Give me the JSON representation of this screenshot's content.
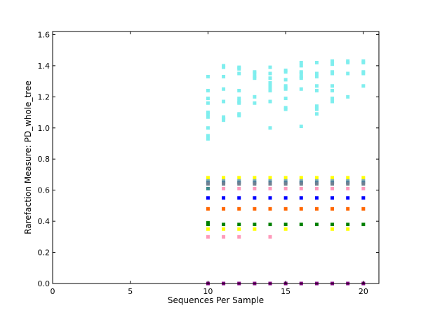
{
  "chart_data": {
    "type": "scatter",
    "title": "",
    "xlabel": "Sequences Per Sample",
    "ylabel": "Rarefaction Measure: PD_whole_tree",
    "xlim": [
      0,
      21
    ],
    "ylim": [
      0,
      1.62
    ],
    "x_ticks": [
      0,
      5,
      10,
      15,
      20
    ],
    "y_ticks": [
      0.0,
      0.2,
      0.4,
      0.6,
      0.8,
      1.0,
      1.2,
      1.4,
      1.6
    ],
    "x_tick_labels": [
      "0",
      "5",
      "10",
      "15",
      "20"
    ],
    "y_tick_labels": [
      "0.0",
      "0.2",
      "0.4",
      "0.6",
      "0.8",
      "1.0",
      "1.2",
      "1.4",
      "1.6"
    ],
    "grid": false,
    "legend": "none",
    "series": [
      {
        "color": "#7feeee",
        "points": [
          [
            10,
            1.33
          ],
          [
            10,
            1.24
          ],
          [
            10,
            1.19
          ],
          [
            10,
            1.16
          ],
          [
            10,
            1.1
          ],
          [
            10,
            1.09
          ],
          [
            10,
            1.07
          ],
          [
            10,
            1.0
          ],
          [
            10,
            0.95
          ],
          [
            10,
            0.93
          ],
          [
            11,
            1.4
          ],
          [
            11,
            1.39
          ],
          [
            11,
            1.33
          ],
          [
            11,
            1.25
          ],
          [
            11,
            1.17
          ],
          [
            11,
            1.07
          ],
          [
            11,
            1.06
          ],
          [
            11,
            1.05
          ],
          [
            12,
            1.39
          ],
          [
            12,
            1.38
          ],
          [
            12,
            1.35
          ],
          [
            12,
            1.24
          ],
          [
            12,
            1.19
          ],
          [
            12,
            1.17
          ],
          [
            12,
            1.16
          ],
          [
            12,
            1.09
          ],
          [
            12,
            1.08
          ],
          [
            13,
            1.36
          ],
          [
            13,
            1.35
          ],
          [
            13,
            1.33
          ],
          [
            13,
            1.32
          ],
          [
            13,
            1.2
          ],
          [
            13,
            1.16
          ],
          [
            14,
            1.39
          ],
          [
            14,
            1.35
          ],
          [
            14,
            1.32
          ],
          [
            14,
            1.29
          ],
          [
            14,
            1.27
          ],
          [
            14,
            1.26
          ],
          [
            14,
            1.24
          ],
          [
            14,
            1.17
          ],
          [
            14,
            1.0
          ],
          [
            15,
            1.37
          ],
          [
            15,
            1.36
          ],
          [
            15,
            1.31
          ],
          [
            15,
            1.27
          ],
          [
            15,
            1.26
          ],
          [
            15,
            1.25
          ],
          [
            15,
            1.19
          ],
          [
            15,
            1.13
          ],
          [
            15,
            1.12
          ],
          [
            16,
            1.42
          ],
          [
            16,
            1.4
          ],
          [
            16,
            1.36
          ],
          [
            16,
            1.35
          ],
          [
            16,
            1.33
          ],
          [
            16,
            1.32
          ],
          [
            16,
            1.25
          ],
          [
            16,
            1.01
          ],
          [
            17,
            1.42
          ],
          [
            17,
            1.35
          ],
          [
            17,
            1.33
          ],
          [
            17,
            1.27
          ],
          [
            17,
            1.24
          ],
          [
            17,
            1.14
          ],
          [
            17,
            1.13
          ],
          [
            17,
            1.12
          ],
          [
            17,
            1.09
          ],
          [
            18,
            1.43
          ],
          [
            18,
            1.41
          ],
          [
            18,
            1.36
          ],
          [
            18,
            1.35
          ],
          [
            18,
            1.27
          ],
          [
            18,
            1.24
          ],
          [
            18,
            1.19
          ],
          [
            18,
            1.17
          ],
          [
            19,
            1.43
          ],
          [
            19,
            1.42
          ],
          [
            19,
            1.35
          ],
          [
            19,
            1.2
          ],
          [
            20,
            1.43
          ],
          [
            20,
            1.42
          ],
          [
            20,
            1.36
          ],
          [
            20,
            1.35
          ],
          [
            20,
            1.27
          ]
        ]
      },
      {
        "color": "#ffff00",
        "points": [
          [
            10,
            0.68
          ],
          [
            11,
            0.68
          ],
          [
            12,
            0.68
          ],
          [
            13,
            0.68
          ],
          [
            14,
            0.68
          ],
          [
            15,
            0.68
          ],
          [
            16,
            0.68
          ],
          [
            17,
            0.68
          ],
          [
            18,
            0.68
          ],
          [
            19,
            0.68
          ],
          [
            20,
            0.68
          ]
        ]
      },
      {
        "color": "#8cb4b4",
        "points": [
          [
            10,
            0.66
          ],
          [
            11,
            0.66
          ],
          [
            12,
            0.66
          ],
          [
            13,
            0.66
          ],
          [
            14,
            0.66
          ],
          [
            15,
            0.66
          ],
          [
            16,
            0.66
          ],
          [
            17,
            0.66
          ],
          [
            18,
            0.66
          ],
          [
            19,
            0.66
          ],
          [
            20,
            0.66
          ]
        ]
      },
      {
        "color": "#4f7f9f",
        "points": [
          [
            10,
            0.65
          ],
          [
            11,
            0.65
          ],
          [
            12,
            0.65
          ],
          [
            13,
            0.65
          ],
          [
            14,
            0.65
          ],
          [
            15,
            0.65
          ],
          [
            16,
            0.65
          ],
          [
            17,
            0.65
          ],
          [
            18,
            0.65
          ],
          [
            19,
            0.65
          ],
          [
            20,
            0.65
          ]
        ]
      },
      {
        "color": "#708090",
        "points": [
          [
            10,
            0.64
          ],
          [
            11,
            0.64
          ],
          [
            12,
            0.64
          ],
          [
            13,
            0.64
          ],
          [
            14,
            0.64
          ],
          [
            15,
            0.64
          ],
          [
            16,
            0.64
          ],
          [
            17,
            0.64
          ],
          [
            18,
            0.64
          ],
          [
            19,
            0.64
          ],
          [
            20,
            0.64
          ]
        ]
      },
      {
        "color": "#ff99bb",
        "points": [
          [
            10,
            0.61
          ],
          [
            11,
            0.61
          ],
          [
            12,
            0.61
          ],
          [
            13,
            0.61
          ],
          [
            14,
            0.61
          ],
          [
            15,
            0.61
          ],
          [
            16,
            0.61
          ],
          [
            17,
            0.61
          ],
          [
            18,
            0.61
          ],
          [
            19,
            0.61
          ],
          [
            20,
            0.61
          ]
        ]
      },
      {
        "color": "#3c8c8c",
        "points": [
          [
            10,
            0.61
          ]
        ]
      },
      {
        "color": "#0000ff",
        "points": [
          [
            10,
            0.55
          ],
          [
            11,
            0.55
          ],
          [
            12,
            0.55
          ],
          [
            13,
            0.55
          ],
          [
            14,
            0.55
          ],
          [
            15,
            0.55
          ],
          [
            16,
            0.55
          ],
          [
            17,
            0.55
          ],
          [
            18,
            0.55
          ],
          [
            19,
            0.55
          ],
          [
            20,
            0.55
          ]
        ]
      },
      {
        "color": "#ff6600",
        "points": [
          [
            10,
            0.48
          ],
          [
            11,
            0.48
          ],
          [
            12,
            0.48
          ],
          [
            13,
            0.48
          ],
          [
            14,
            0.48
          ],
          [
            15,
            0.48
          ],
          [
            16,
            0.48
          ],
          [
            17,
            0.48
          ],
          [
            18,
            0.48
          ],
          [
            19,
            0.48
          ],
          [
            20,
            0.48
          ]
        ]
      },
      {
        "color": "#008000",
        "points": [
          [
            10,
            0.39
          ],
          [
            10,
            0.38
          ],
          [
            11,
            0.38
          ],
          [
            12,
            0.38
          ],
          [
            13,
            0.38
          ],
          [
            14,
            0.38
          ],
          [
            15,
            0.38
          ],
          [
            16,
            0.38
          ],
          [
            17,
            0.38
          ],
          [
            18,
            0.38
          ],
          [
            19,
            0.38
          ],
          [
            20,
            0.38
          ]
        ]
      },
      {
        "color": "#ffff00",
        "points": [
          [
            10,
            0.35
          ],
          [
            11,
            0.35
          ],
          [
            12,
            0.35
          ],
          [
            13,
            0.35
          ],
          [
            15,
            0.35
          ],
          [
            18,
            0.35
          ],
          [
            19,
            0.35
          ]
        ]
      },
      {
        "color": "#ff99bb",
        "points": [
          [
            10,
            0.3
          ],
          [
            11,
            0.3
          ],
          [
            12,
            0.3
          ],
          [
            14,
            0.3
          ]
        ]
      },
      {
        "color": "#800080",
        "points": [
          [
            10,
            0.0
          ],
          [
            11,
            0.0
          ],
          [
            12,
            0.0
          ],
          [
            13,
            0.0
          ],
          [
            14,
            0.0
          ],
          [
            15,
            0.0
          ],
          [
            16,
            0.0
          ],
          [
            17,
            0.0
          ],
          [
            18,
            0.0
          ],
          [
            19,
            0.0
          ],
          [
            20,
            0.0
          ]
        ]
      }
    ]
  }
}
